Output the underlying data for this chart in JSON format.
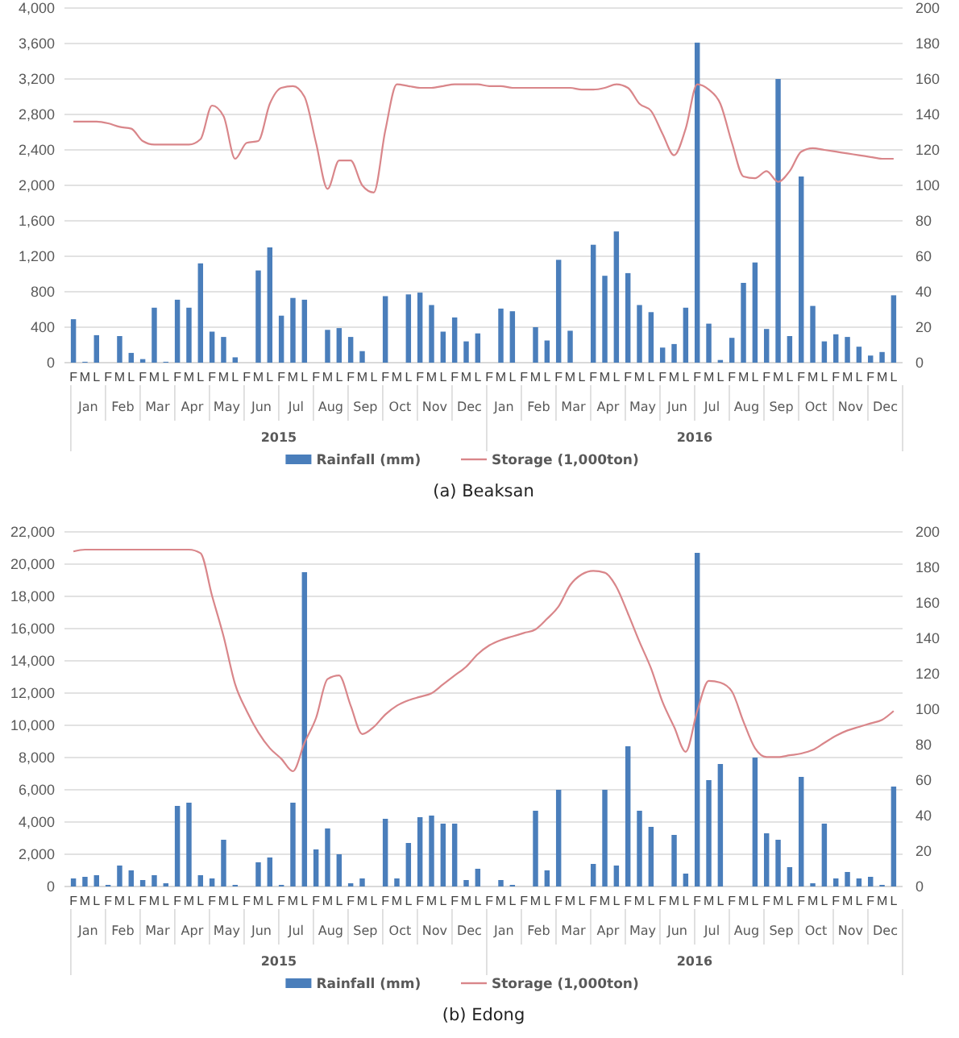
{
  "chart_data": [
    {
      "type": "bar",
      "title": "(a)  Beaksan",
      "categories": [
        "F",
        "M",
        "L",
        "F",
        "M",
        "L",
        "F",
        "M",
        "L",
        "F",
        "M",
        "L",
        "F",
        "M",
        "L",
        "F",
        "M",
        "L",
        "F",
        "M",
        "L",
        "F",
        "M",
        "L",
        "F",
        "M",
        "L",
        "F",
        "M",
        "L",
        "F",
        "M",
        "L",
        "F",
        "M",
        "L",
        "F",
        "M",
        "L",
        "F",
        "M",
        "L",
        "F",
        "M",
        "L",
        "F",
        "M",
        "L",
        "F",
        "M",
        "L",
        "F",
        "M",
        "L",
        "F",
        "M",
        "L",
        "F",
        "M",
        "L",
        "F",
        "M",
        "L",
        "F",
        "M",
        "L",
        "F",
        "M",
        "L",
        "F",
        "M",
        "L"
      ],
      "annotations": [
        "Jan",
        "Feb",
        "Mar",
        "Apr",
        "May",
        "Jun",
        "Jul",
        "Aug",
        "Sep",
        "Oct",
        "Nov",
        "Dec",
        "Jan",
        "Feb",
        "Mar",
        "Apr",
        "May",
        "Jun",
        "Jul",
        "Aug",
        "Sep",
        "Oct",
        "Nov",
        "Dec",
        "2015",
        "2016"
      ],
      "series": [
        {
          "name": "Rainfall (mm)",
          "color": "#4a7ebb",
          "values": [
            490,
            10,
            310,
            0,
            300,
            110,
            40,
            620,
            10,
            710,
            620,
            1120,
            350,
            290,
            60,
            0,
            1040,
            1300,
            530,
            730,
            710,
            0,
            370,
            390,
            290,
            130,
            0,
            750,
            0,
            770,
            790,
            650,
            350,
            510,
            240,
            330,
            0,
            610,
            580,
            0,
            400,
            250,
            1160,
            360,
            0,
            1330,
            980,
            1480,
            1010,
            650,
            570,
            170,
            210,
            620,
            3610,
            440,
            30,
            280,
            900,
            1130,
            380,
            3200,
            300,
            2100,
            640,
            240,
            320,
            290,
            180,
            80,
            120,
            760
          ]
        },
        {
          "name": "Storage (1,000ton)",
          "type": "line",
          "axis": "y2",
          "color": "#d9868a",
          "values": [
            136,
            136,
            136,
            135,
            133,
            132,
            125,
            123,
            123,
            123,
            123,
            126,
            145,
            139,
            115,
            124,
            125,
            146,
            155,
            156,
            150,
            124,
            98,
            114,
            114,
            100,
            96,
            131,
            157,
            156,
            155,
            155,
            156,
            157,
            157,
            157,
            156,
            156,
            155,
            155,
            155,
            155,
            155,
            155,
            154,
            154,
            155,
            157,
            155,
            146,
            142,
            129,
            117,
            132,
            157,
            154,
            146,
            124,
            105,
            104,
            108,
            102,
            108,
            119,
            121,
            120,
            119,
            118,
            117,
            116,
            115,
            115
          ]
        }
      ],
      "ylim": [
        0,
        4000
      ],
      "yticks": [
        {
          "value": 0,
          "label": "0"
        },
        {
          "value": 400,
          "label": "400"
        },
        {
          "value": 800,
          "label": "800"
        },
        {
          "value": 1200,
          "label": "1,200"
        },
        {
          "value": 1600,
          "label": "1,600"
        },
        {
          "value": 2000,
          "label": "2,000"
        },
        {
          "value": 2400,
          "label": "2,400"
        },
        {
          "value": 2800,
          "label": "2,800"
        },
        {
          "value": 3200,
          "label": "3,200"
        },
        {
          "value": 3600,
          "label": "3,600"
        },
        {
          "value": 4000,
          "label": "4,000"
        }
      ],
      "y2lim": [
        0,
        200
      ],
      "y2ticks": [
        0,
        20,
        40,
        60,
        80,
        100,
        120,
        140,
        160,
        180,
        200
      ],
      "grid": "y",
      "legend": "bottom",
      "marker": "none"
    },
    {
      "type": "bar",
      "title": "(b)  Edong",
      "categories": [
        "F",
        "M",
        "L",
        "F",
        "M",
        "L",
        "F",
        "M",
        "L",
        "F",
        "M",
        "L",
        "F",
        "M",
        "L",
        "F",
        "M",
        "L",
        "F",
        "M",
        "L",
        "F",
        "M",
        "L",
        "F",
        "M",
        "L",
        "F",
        "M",
        "L",
        "F",
        "M",
        "L",
        "F",
        "M",
        "L",
        "F",
        "M",
        "L",
        "F",
        "M",
        "L",
        "F",
        "M",
        "L",
        "F",
        "M",
        "L",
        "F",
        "M",
        "L",
        "F",
        "M",
        "L",
        "F",
        "M",
        "L",
        "F",
        "M",
        "L",
        "F",
        "M",
        "L",
        "F",
        "M",
        "L",
        "F",
        "M",
        "L",
        "F",
        "M",
        "L"
      ],
      "annotations": [
        "Jan",
        "Feb",
        "Mar",
        "Apr",
        "May",
        "Jun",
        "Jul",
        "Aug",
        "Sep",
        "Oct",
        "Nov",
        "Dec",
        "Jan",
        "Feb",
        "Mar",
        "Apr",
        "May",
        "Jun",
        "Jul",
        "Aug",
        "Sep",
        "Oct",
        "Nov",
        "Dec",
        "2015",
        "2016"
      ],
      "series": [
        {
          "name": "Rainfall (mm)",
          "color": "#4a7ebb",
          "values": [
            500,
            600,
            700,
            100,
            1300,
            1000,
            400,
            700,
            200,
            5000,
            5200,
            700,
            500,
            2900,
            100,
            0,
            1500,
            1800,
            100,
            5200,
            19500,
            2300,
            3600,
            2000,
            200,
            500,
            0,
            4200,
            500,
            2700,
            4300,
            4400,
            3900,
            3900,
            400,
            1100,
            0,
            400,
            100,
            0,
            4700,
            1000,
            6000,
            0,
            0,
            1400,
            6000,
            1300,
            8700,
            4700,
            3700,
            0,
            3200,
            800,
            20700,
            6600,
            7600,
            0,
            0,
            8000,
            3300,
            2900,
            1200,
            6800,
            200,
            3900,
            500,
            900,
            500,
            600,
            100,
            6200
          ]
        },
        {
          "name": "Storage (1,000ton)",
          "type": "line",
          "axis": "y2",
          "color": "#d9868a",
          "values": [
            189,
            190,
            190,
            190,
            190,
            190,
            190,
            190,
            190,
            190,
            190,
            188,
            164,
            141,
            114,
            99,
            87,
            78,
            72,
            65,
            81,
            95,
            117,
            119,
            102,
            86,
            90,
            97,
            102,
            105,
            107,
            109,
            114,
            119,
            124,
            131,
            136,
            139,
            141,
            143,
            145,
            151,
            158,
            170,
            176,
            178,
            177,
            169,
            154,
            138,
            123,
            104,
            90,
            76,
            99,
            116,
            115,
            110,
            93,
            78,
            73,
            73,
            74,
            75,
            77,
            81,
            85,
            88,
            90,
            92,
            94,
            99
          ]
        }
      ],
      "ylim": [
        0,
        22000
      ],
      "yticks": [
        {
          "value": 0,
          "label": "0"
        },
        {
          "value": 2000,
          "label": "2,000"
        },
        {
          "value": 4000,
          "label": "4,000"
        },
        {
          "value": 6000,
          "label": "6,000"
        },
        {
          "value": 8000,
          "label": "8,000"
        },
        {
          "value": 10000,
          "label": "10,000"
        },
        {
          "value": 12000,
          "label": "12,000"
        },
        {
          "value": 14000,
          "label": "14,000"
        },
        {
          "value": 16000,
          "label": "16,000"
        },
        {
          "value": 18000,
          "label": "18,000"
        },
        {
          "value": 20000,
          "label": "20,000"
        },
        {
          "value": 22000,
          "label": "22,000"
        }
      ],
      "y2lim": [
        0,
        200
      ],
      "y2ticks": [
        0,
        20,
        40,
        60,
        80,
        100,
        120,
        140,
        160,
        180,
        200
      ],
      "grid": "y",
      "legend": "bottom",
      "marker": "none"
    }
  ]
}
